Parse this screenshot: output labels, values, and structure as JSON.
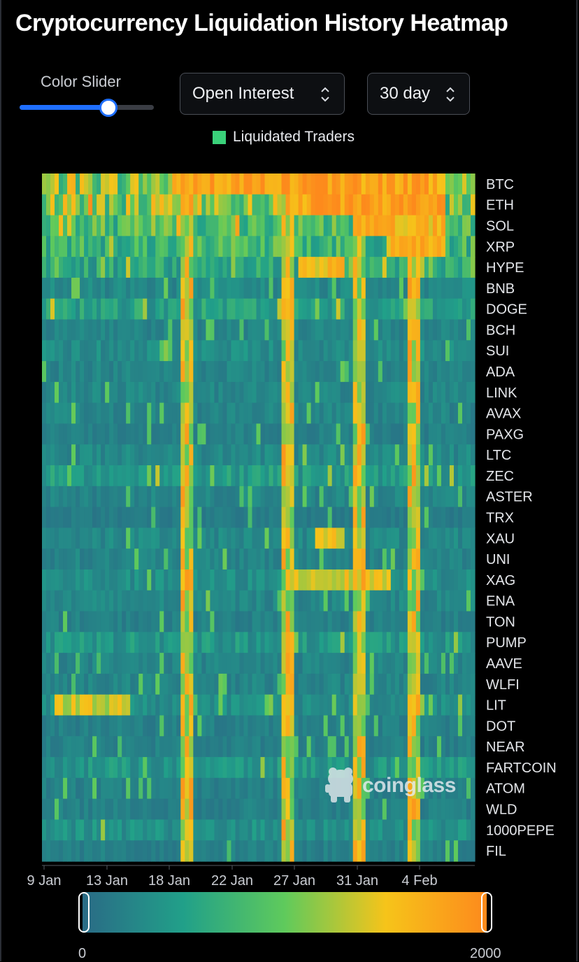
{
  "header": {
    "title": "Cryptocurrency Liquidation History Heatmap"
  },
  "controls": {
    "slider_label": "Color Slider",
    "slider_value": 0.66,
    "metric_select": "Open Interest",
    "period_select": "30 day"
  },
  "legend": {
    "label": "Liquidated Traders",
    "color": "#3ad17a"
  },
  "watermark": {
    "text": "coinglass",
    "icon": "frog-logo-icon"
  },
  "color_scale": {
    "min_label": "0",
    "max_label": "2000",
    "colors": [
      "#2a6b86",
      "#21a089",
      "#5fca5c",
      "#f6c41a",
      "#fd8a1c"
    ]
  },
  "chart_data": {
    "type": "heatmap",
    "title": "Cryptocurrency Liquidation History Heatmap",
    "x_tick_labels": [
      "9 Jan",
      "13 Jan",
      "18 Jan",
      "22 Jan",
      "27 Jan",
      "31 Jan",
      "4 Feb"
    ],
    "y_labels": [
      "BTC",
      "ETH",
      "SOL",
      "XRP",
      "HYPE",
      "BNB",
      "DOGE",
      "BCH",
      "SUI",
      "ADA",
      "LINK",
      "AVAX",
      "PAXG",
      "LTC",
      "ZEC",
      "ASTER",
      "TRX",
      "XAU",
      "UNI",
      "XAG",
      "ENA",
      "TON",
      "PUMP",
      "AAVE",
      "WLFI",
      "LIT",
      "DOT",
      "NEAR",
      "FARTCOIN",
      "ATOM",
      "WLD",
      "1000PEPE",
      "FIL"
    ],
    "color_range": [
      0,
      2000
    ],
    "legend": "Liquidated Traders",
    "note_period": "30 day",
    "highlights": [
      {
        "symbol": "BTC",
        "from": "18 Jan",
        "to": "6 Feb",
        "approx_value": 2000
      },
      {
        "symbol": "ETH",
        "from": "26 Jan",
        "to": "6 Feb",
        "approx_value": 2000
      },
      {
        "symbol": "SOL",
        "from": "31 Jan",
        "to": "6 Feb",
        "approx_value": 1800
      },
      {
        "symbol": "XRP",
        "from": "2 Feb",
        "to": "6 Feb",
        "approx_value": 1800
      },
      {
        "symbol": "HYPE",
        "from": "27 Jan",
        "to": "30 Jan",
        "approx_value": 1800
      },
      {
        "symbol": "XAU",
        "from": "28 Jan",
        "to": "30 Jan",
        "approx_value": 1600
      },
      {
        "symbol": "XAG",
        "from": "26 Jan",
        "to": "2 Feb",
        "approx_value": 1600
      },
      {
        "symbol": "LIT",
        "from": "10 Jan",
        "to": "15 Jan",
        "approx_value": 1500
      }
    ],
    "spike_dates": [
      "19 Jan",
      "26 Jan",
      "31 Jan",
      "4 Feb"
    ]
  }
}
